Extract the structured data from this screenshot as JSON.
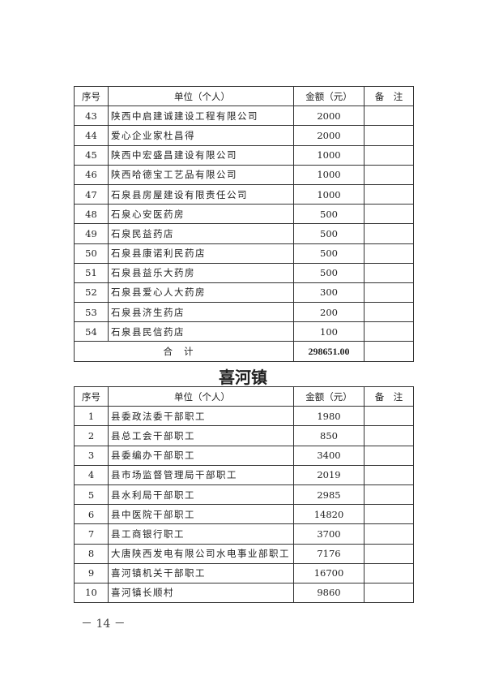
{
  "headers": {
    "no": "序号",
    "unit": "单位（个人）",
    "amount": "金额（元）",
    "remark": "备　注"
  },
  "table1": {
    "rows": [
      {
        "no": "43",
        "unit": "陕西中启建诚建设工程有限公司",
        "amount": "2000",
        "remark": ""
      },
      {
        "no": "44",
        "unit": "爱心企业家杜昌得",
        "amount": "2000",
        "remark": ""
      },
      {
        "no": "45",
        "unit": "陕西中宏盛昌建设有限公司",
        "amount": "1000",
        "remark": ""
      },
      {
        "no": "46",
        "unit": "陕西哈德宝工艺品有限公司",
        "amount": "1000",
        "remark": ""
      },
      {
        "no": "47",
        "unit": "石泉县房屋建设有限责任公司",
        "amount": "1000",
        "remark": ""
      },
      {
        "no": "48",
        "unit": "石泉心安医药房",
        "amount": "500",
        "remark": ""
      },
      {
        "no": "49",
        "unit": "石泉民益药店",
        "amount": "500",
        "remark": ""
      },
      {
        "no": "50",
        "unit": "石泉县康诺利民药店",
        "amount": "500",
        "remark": ""
      },
      {
        "no": "51",
        "unit": "石泉县益乐大药房",
        "amount": "500",
        "remark": ""
      },
      {
        "no": "52",
        "unit": "石泉县爱心人大药房",
        "amount": "300",
        "remark": ""
      },
      {
        "no": "53",
        "unit": "石泉县济生药店",
        "amount": "200",
        "remark": ""
      },
      {
        "no": "54",
        "unit": "石泉县民信药店",
        "amount": "100",
        "remark": ""
      }
    ],
    "total_label": "合计",
    "total_amount": "298651.00"
  },
  "section_title": "喜河镇",
  "table2": {
    "rows": [
      {
        "no": "1",
        "unit": "县委政法委干部职工",
        "amount": "1980",
        "remark": ""
      },
      {
        "no": "2",
        "unit": "县总工会干部职工",
        "amount": "850",
        "remark": ""
      },
      {
        "no": "3",
        "unit": "县委编办干部职工",
        "amount": "3400",
        "remark": ""
      },
      {
        "no": "4",
        "unit": "县市场监督管理局干部职工",
        "amount": "2019",
        "remark": ""
      },
      {
        "no": "5",
        "unit": "县水利局干部职工",
        "amount": "2985",
        "remark": ""
      },
      {
        "no": "6",
        "unit": "县中医院干部职工",
        "amount": "14820",
        "remark": ""
      },
      {
        "no": "7",
        "unit": "县工商银行职工",
        "amount": "3700",
        "remark": ""
      },
      {
        "no": "8",
        "unit": "大唐陕西发电有限公司水电事业部职工",
        "amount": "7176",
        "remark": ""
      },
      {
        "no": "9",
        "unit": "喜河镇机关干部职工",
        "amount": "16700",
        "remark": ""
      },
      {
        "no": "10",
        "unit": "喜河镇长顺村",
        "amount": "9860",
        "remark": ""
      }
    ]
  },
  "page_number": "－ 14 －"
}
